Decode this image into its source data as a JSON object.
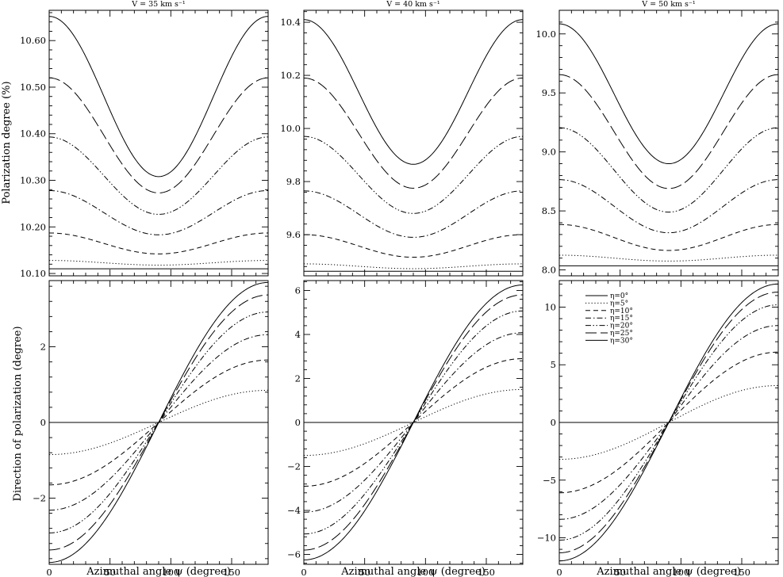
{
  "figure": {
    "ylabel_top": "Polarization degree (%)",
    "ylabel_bottom": "Direction of polarization (degree)",
    "xlabel": "Azimuthal angle ψ (degree)"
  },
  "legend": {
    "placement": "upper-left of bottom-right panel",
    "entries": [
      {
        "label": "η=0°",
        "style": "solid"
      },
      {
        "label": "η=5°",
        "style": "dotted"
      },
      {
        "label": "η=10°",
        "style": "dashed"
      },
      {
        "label": "η=15°",
        "style": "dash-dot"
      },
      {
        "label": "η=20°",
        "style": "dash-dot-dot"
      },
      {
        "label": "η=25°",
        "style": "long-dash"
      },
      {
        "label": "η=30°",
        "style": "solid"
      }
    ]
  },
  "chart_data": [
    {
      "type": "line",
      "title": "V = 35 km s⁻¹",
      "xlabel": "",
      "ylabel": "Polarization degree (%)",
      "xlim": [
        0,
        180
      ],
      "ylim": [
        10.095,
        10.665
      ],
      "xticks": [
        0,
        50,
        100,
        150
      ],
      "yticks": [
        10.1,
        10.2,
        10.3,
        10.4,
        10.5,
        10.6
      ],
      "ytick_labels": [
        "10.10",
        "10.20",
        "10.30",
        "10.40",
        "10.50",
        "10.60"
      ],
      "model": "cos2",
      "series": [
        {
          "name": "η=0°",
          "style": "solid",
          "endpoints": [
            10.11,
            10.11
          ]
        },
        {
          "name": "η=5°",
          "style": "dotted",
          "endpoints": [
            10.128,
            10.118
          ]
        },
        {
          "name": "η=10°",
          "style": "dashed",
          "endpoints": [
            10.187,
            10.142
          ]
        },
        {
          "name": "η=15°",
          "style": "dash-dot",
          "endpoints": [
            10.278,
            10.183
          ]
        },
        {
          "name": "η=20°",
          "style": "dash-dot-dot",
          "endpoints": [
            10.393,
            10.227
          ]
        },
        {
          "name": "η=25°",
          "style": "long-dash",
          "endpoints": [
            10.52,
            10.273
          ]
        },
        {
          "name": "η=30°",
          "style": "solid",
          "endpoints": [
            10.652,
            10.308
          ]
        }
      ]
    },
    {
      "type": "line",
      "title": "V = 40 km s⁻¹",
      "xlabel": "",
      "ylabel": "",
      "xlim": [
        0,
        180
      ],
      "ylim": [
        9.445,
        10.445
      ],
      "xticks": [
        0,
        50,
        100,
        150
      ],
      "yticks": [
        9.6,
        9.8,
        10.0,
        10.2,
        10.4
      ],
      "ytick_labels": [
        "9.6",
        "9.8",
        "10.0",
        "10.2",
        "10.4"
      ],
      "model": "cos2",
      "series": [
        {
          "name": "η=0°",
          "style": "solid",
          "endpoints": [
            9.462,
            9.462
          ]
        },
        {
          "name": "η=5°",
          "style": "dotted",
          "endpoints": [
            9.49,
            9.472
          ]
        },
        {
          "name": "η=10°",
          "style": "dashed",
          "endpoints": [
            9.6,
            9.515
          ]
        },
        {
          "name": "η=15°",
          "style": "dash-dot",
          "endpoints": [
            9.765,
            9.59
          ]
        },
        {
          "name": "η=20°",
          "style": "dash-dot-dot",
          "endpoints": [
            9.97,
            9.68
          ]
        },
        {
          "name": "η=25°",
          "style": "long-dash",
          "endpoints": [
            10.19,
            9.775
          ]
        },
        {
          "name": "η=30°",
          "style": "solid",
          "endpoints": [
            10.41,
            9.865
          ]
        }
      ]
    },
    {
      "type": "line",
      "title": "V = 50 km s⁻¹",
      "xlabel": "",
      "ylabel": "",
      "xlim": [
        0,
        180
      ],
      "ylim": [
        7.95,
        10.2
      ],
      "xticks": [
        0,
        50,
        100,
        150
      ],
      "yticks": [
        8.0,
        8.5,
        9.0,
        9.5,
        10.0
      ],
      "ytick_labels": [
        "8.0",
        "8.5",
        "9.0",
        "9.5",
        "10.0"
      ],
      "model": "cos2",
      "series": [
        {
          "name": "η=0°",
          "style": "solid",
          "endpoints": [
            8.035,
            8.035
          ]
        },
        {
          "name": "η=5°",
          "style": "dotted",
          "endpoints": [
            8.125,
            8.075
          ]
        },
        {
          "name": "η=10°",
          "style": "dashed",
          "endpoints": [
            8.385,
            8.165
          ]
        },
        {
          "name": "η=15°",
          "style": "dash-dot",
          "endpoints": [
            8.765,
            8.315
          ]
        },
        {
          "name": "η=20°",
          "style": "dash-dot-dot",
          "endpoints": [
            9.205,
            8.49
          ]
        },
        {
          "name": "η=25°",
          "style": "long-dash",
          "endpoints": [
            9.655,
            8.69
          ]
        },
        {
          "name": "η=30°",
          "style": "solid",
          "endpoints": [
            10.085,
            8.9
          ]
        }
      ]
    },
    {
      "type": "line",
      "title": "",
      "xlabel": "Azimuthal angle ψ (degree)",
      "ylabel": "Direction of polarization (degree)",
      "xlim": [
        0,
        180
      ],
      "ylim": [
        -3.75,
        3.75
      ],
      "xticks": [
        0,
        50,
        100,
        150
      ],
      "yticks": [
        -2,
        0,
        2
      ],
      "ytick_labels": [
        "−2",
        "0",
        "2"
      ],
      "model": "neg-cos",
      "series": [
        {
          "name": "η=0°",
          "style": "solid",
          "amplitude": 0.0
        },
        {
          "name": "η=5°",
          "style": "dotted",
          "amplitude": 0.85
        },
        {
          "name": "η=10°",
          "style": "dashed",
          "amplitude": 1.65
        },
        {
          "name": "η=15°",
          "style": "dash-dot",
          "amplitude": 2.32
        },
        {
          "name": "η=20°",
          "style": "dash-dot-dot",
          "amplitude": 2.92
        },
        {
          "name": "η=25°",
          "style": "long-dash",
          "amplitude": 3.37
        },
        {
          "name": "η=30°",
          "style": "solid",
          "amplitude": 3.7
        }
      ]
    },
    {
      "type": "line",
      "title": "",
      "xlabel": "Azimuthal angle ψ (degree)",
      "ylabel": "",
      "xlim": [
        0,
        180
      ],
      "ylim": [
        -6.45,
        6.45
      ],
      "xticks": [
        0,
        50,
        100,
        150
      ],
      "yticks": [
        -6,
        -4,
        -2,
        0,
        2,
        4,
        6
      ],
      "ytick_labels": [
        "−6",
        "−4",
        "−2",
        "0",
        "2",
        "4",
        "6"
      ],
      "model": "neg-cos",
      "series": [
        {
          "name": "η=0°",
          "style": "solid",
          "amplitude": 0.0
        },
        {
          "name": "η=5°",
          "style": "dotted",
          "amplitude": 1.5
        },
        {
          "name": "η=10°",
          "style": "dashed",
          "amplitude": 2.9
        },
        {
          "name": "η=15°",
          "style": "dash-dot",
          "amplitude": 4.08
        },
        {
          "name": "η=20°",
          "style": "dash-dot-dot",
          "amplitude": 5.07
        },
        {
          "name": "η=25°",
          "style": "long-dash",
          "amplitude": 5.8
        },
        {
          "name": "η=30°",
          "style": "solid",
          "amplitude": 6.25
        }
      ]
    },
    {
      "type": "line",
      "title": "",
      "xlabel": "Azimuthal angle ψ (degree)",
      "ylabel": "",
      "xlim": [
        0,
        180
      ],
      "ylim": [
        -12.3,
        12.3
      ],
      "xticks": [
        0,
        50,
        100,
        150
      ],
      "yticks": [
        -10,
        -5,
        0,
        5,
        10
      ],
      "ytick_labels": [
        "−10",
        "−5",
        "0",
        "5",
        "10"
      ],
      "model": "neg-cos",
      "series": [
        {
          "name": "η=0°",
          "style": "solid",
          "amplitude": 0.0
        },
        {
          "name": "η=5°",
          "style": "dotted",
          "amplitude": 3.2
        },
        {
          "name": "η=10°",
          "style": "dashed",
          "amplitude": 6.1
        },
        {
          "name": "η=15°",
          "style": "dash-dot",
          "amplitude": 8.4
        },
        {
          "name": "η=20°",
          "style": "dash-dot-dot",
          "amplitude": 10.2
        },
        {
          "name": "η=25°",
          "style": "long-dash",
          "amplitude": 11.3
        },
        {
          "name": "η=30°",
          "style": "solid",
          "amplitude": 12.0
        }
      ]
    }
  ]
}
